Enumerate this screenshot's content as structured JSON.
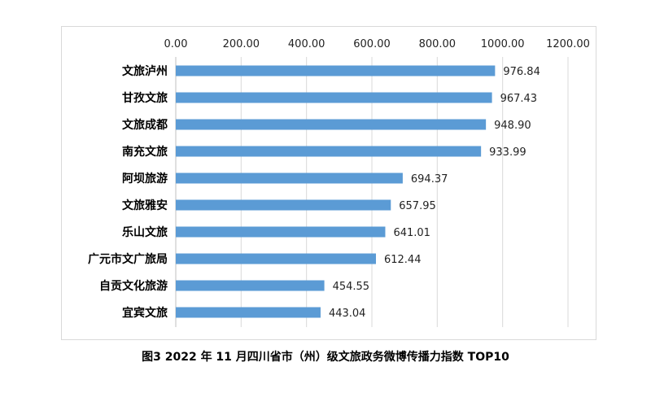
{
  "chart_data": {
    "type": "bar",
    "orientation": "horizontal",
    "title": "图3   2022 年 11 月四川省市（州）级文旅政务微博传播力指数 TOP10",
    "categories": [
      "文旅泸州",
      "甘孜文旅",
      "文旅成都",
      "南充文旅",
      "阿坝旅游",
      "文旅雅安",
      "乐山文旅",
      "广元市文广旅局",
      "自贡文化旅游",
      "宜宾文旅"
    ],
    "values": [
      976.84,
      967.43,
      948.9,
      933.99,
      694.37,
      657.95,
      641.01,
      612.44,
      454.55,
      443.04
    ],
    "value_labels": [
      "976.84",
      "967.43",
      "948.90",
      "933.99",
      "694.37",
      "657.95",
      "641.01",
      "612.44",
      "454.55",
      "443.04"
    ],
    "xticks": [
      "0.00",
      "200.00",
      "400.00",
      "600.00",
      "800.00",
      "1000.00",
      "1200.00"
    ],
    "xlim": [
      0,
      1200
    ],
    "axis_position": "top",
    "grid": true,
    "bar_color": "#5b9bd5"
  }
}
